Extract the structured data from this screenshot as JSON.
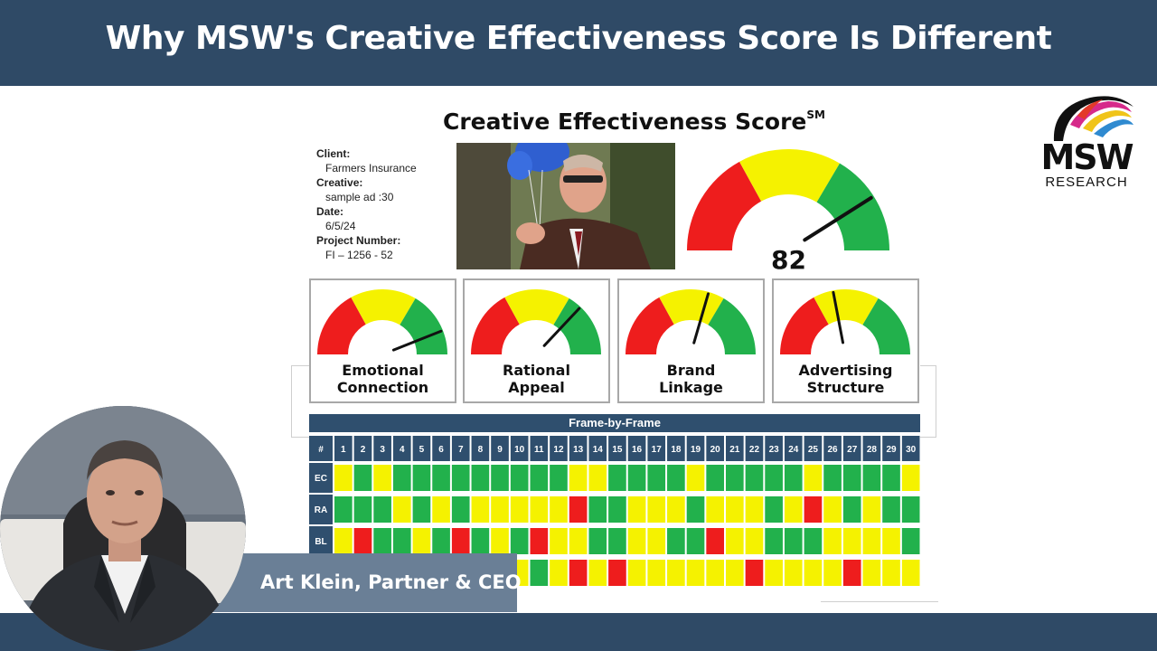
{
  "header": {
    "title": "Why MSW's Creative Effectiveness Score Is Different"
  },
  "report": {
    "title": "Creative Effectiveness Score",
    "title_mark": "SM",
    "info": [
      {
        "label": "Client:",
        "value": "Farmers Insurance"
      },
      {
        "label": "Creative:",
        "value": "sample ad :30"
      },
      {
        "label": "Date:",
        "value": "6/5/24"
      },
      {
        "label": "Project Number:",
        "value": "FI – 1256 - 52"
      }
    ],
    "main_score": "82",
    "main_needle_pct": 0.82,
    "gauge_colors": {
      "red": "#ee1d1d",
      "yellow": "#f5f200",
      "green": "#22b14c",
      "needle": "#111111"
    },
    "sub_scores": [
      {
        "line1": "Emotional",
        "line2": "Connection",
        "needle_pct": 0.88
      },
      {
        "line1": "Rational",
        "line2": "Appeal",
        "needle_pct": 0.74
      },
      {
        "line1": "Brand",
        "line2": "Linkage",
        "needle_pct": 0.59
      },
      {
        "line1": "Advertising",
        "line2": "Structure",
        "needle_pct": 0.44
      }
    ]
  },
  "frame_by_frame": {
    "title": "Frame-by-Frame",
    "hash_label": "#",
    "frames": [
      "1",
      "2",
      "3",
      "4",
      "5",
      "6",
      "7",
      "8",
      "9",
      "10",
      "11",
      "12",
      "13",
      "14",
      "15",
      "16",
      "17",
      "18",
      "19",
      "20",
      "21",
      "22",
      "23",
      "24",
      "25",
      "26",
      "27",
      "28",
      "29",
      "30"
    ],
    "rows": [
      {
        "label": "EC",
        "cells": "YGYGGGGGGGGGYYGGGGYGGGGGYGGGGY"
      },
      {
        "label": "RA",
        "cells": "GGGYGYGYYYYYRGGYYYGYYYGYRYGYGG"
      },
      {
        "label": "BL",
        "cells": "YRGGYGRGYGRYYGGYYGGRYYGGGYYYYG"
      },
      {
        "label": "",
        "cells": "YYYYGYGYGYGYRYRYYYYYYRYYYYRYYY"
      }
    ],
    "colors": {
      "G": "#22b14c",
      "Y": "#f5f200",
      "R": "#ee1d1d",
      "header": "#2f4f6e"
    }
  },
  "logo": {
    "name": "MSW",
    "sub": "RESEARCH"
  },
  "presenter": {
    "name": "Art Klein, Partner & CEO"
  }
}
